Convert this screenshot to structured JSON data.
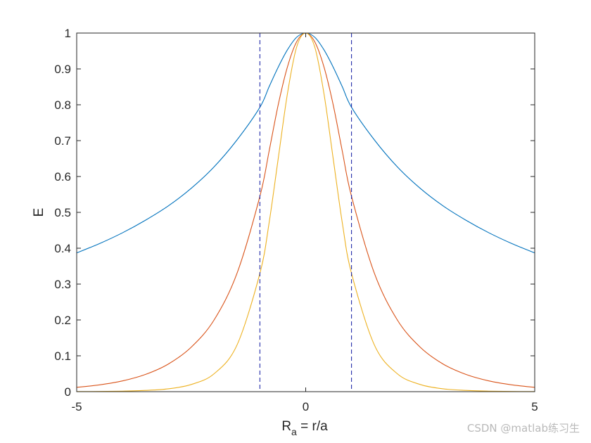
{
  "chart_data": {
    "type": "line",
    "title": "",
    "xlabel": {
      "main": "R",
      "sub": "a",
      "rest": " = r/a"
    },
    "ylabel": "E",
    "xlim": [
      -5,
      5
    ],
    "ylim": [
      0,
      1
    ],
    "xticks": [
      -5,
      0,
      5
    ],
    "yticks": [
      0,
      0.1,
      0.2,
      0.3,
      0.4,
      0.5,
      0.6,
      0.7,
      0.8,
      0.9,
      1
    ],
    "xtick_labels": [
      "-5",
      "0",
      "5"
    ],
    "ytick_labels": [
      "0",
      "0.1",
      "0.2",
      "0.3",
      "0.4",
      "0.5",
      "0.6",
      "0.7",
      "0.8",
      "0.9",
      "1"
    ],
    "grid": false,
    "series": [
      {
        "color": "#0072BD",
        "x": [
          -5,
          -4.5,
          -4,
          -3.5,
          -3,
          -2.5,
          -2,
          -1.5,
          -1,
          -0.8,
          -0.6,
          -0.4,
          -0.2,
          0,
          0.2,
          0.4,
          0.6,
          0.8,
          1,
          1.5,
          2,
          2.5,
          3,
          3.5,
          4,
          4.5,
          5
        ],
        "y": [
          0.387,
          0.413,
          0.443,
          0.478,
          0.518,
          0.567,
          0.627,
          0.702,
          0.793,
          0.85,
          0.905,
          0.953,
          0.988,
          1.0,
          0.988,
          0.953,
          0.905,
          0.85,
          0.793,
          0.702,
          0.627,
          0.567,
          0.518,
          0.478,
          0.443,
          0.413,
          0.387
        ]
      },
      {
        "color": "#D95319",
        "x": [
          -5,
          -4.5,
          -4,
          -3.5,
          -3,
          -2.5,
          -2,
          -1.5,
          -1,
          -0.8,
          -0.6,
          -0.4,
          -0.2,
          0,
          0.2,
          0.4,
          0.6,
          0.8,
          1,
          1.5,
          2,
          2.5,
          3,
          3.5,
          4,
          4.5,
          5
        ],
        "y": [
          0.012,
          0.019,
          0.03,
          0.048,
          0.077,
          0.124,
          0.2,
          0.33,
          0.545,
          0.67,
          0.8,
          0.905,
          0.975,
          1.0,
          0.975,
          0.905,
          0.8,
          0.67,
          0.545,
          0.33,
          0.2,
          0.124,
          0.077,
          0.048,
          0.03,
          0.019,
          0.012
        ]
      },
      {
        "color": "#EDB120",
        "x": [
          -5,
          -4.5,
          -4,
          -3.5,
          -3,
          -2.5,
          -2,
          -1.5,
          -1,
          -0.8,
          -0.6,
          -0.4,
          -0.2,
          0,
          0.2,
          0.4,
          0.6,
          0.8,
          1,
          1.5,
          2,
          2.5,
          3,
          3.5,
          4,
          4.5,
          5
        ],
        "y": [
          0.0003,
          0.0006,
          0.0015,
          0.0035,
          0.008,
          0.02,
          0.05,
          0.13,
          0.33,
          0.47,
          0.65,
          0.83,
          0.96,
          1.0,
          0.96,
          0.83,
          0.65,
          0.47,
          0.33,
          0.13,
          0.05,
          0.02,
          0.008,
          0.0035,
          0.0015,
          0.0006,
          0.0003
        ]
      }
    ],
    "reference_lines": [
      {
        "orientation": "vertical",
        "x": -1,
        "color": "#1f2aa8",
        "style": "dashed"
      },
      {
        "orientation": "vertical",
        "x": 1,
        "color": "#1f2aa8",
        "style": "dashed"
      }
    ]
  },
  "watermark": "CSDN @matlab练习生"
}
